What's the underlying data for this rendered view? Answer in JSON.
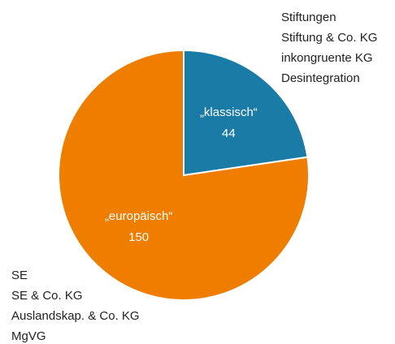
{
  "chart_data": {
    "type": "pie",
    "categories": [
      "„klassisch“",
      "„europäisch“"
    ],
    "values": [
      44,
      150
    ],
    "colors": [
      "#1a7ca6",
      "#ef7d00"
    ],
    "annotations": [
      [
        "Stiftungen",
        "Stiftung & Co. KG",
        "inkongruente KG",
        "Desintegration"
      ],
      [
        "SE",
        "SE & Co. KG",
        "Auslandskap. & Co. KG",
        "MgVG"
      ]
    ]
  }
}
